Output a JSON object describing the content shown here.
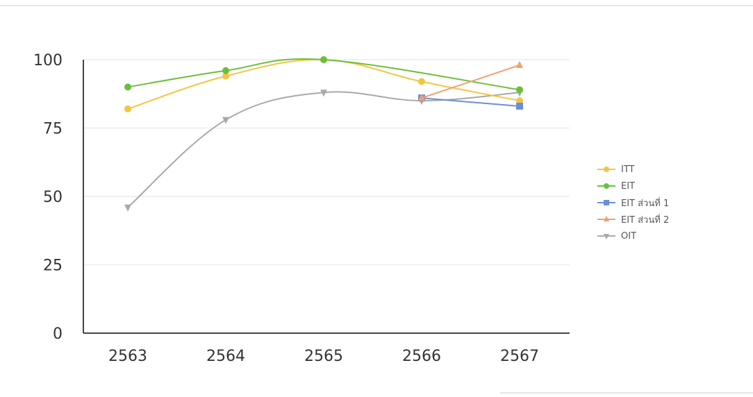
{
  "chart_data": {
    "type": "line",
    "categories": [
      "2563",
      "2564",
      "2565",
      "2566",
      "2567"
    ],
    "yticks": [
      "0",
      "25",
      "50",
      "75",
      "100"
    ],
    "ylim": [
      0,
      100
    ],
    "grid": true,
    "legend_position": "right",
    "series": [
      {
        "name": "ITT",
        "color": "#f4c542",
        "marker": "circle",
        "values": [
          82,
          94,
          100,
          92,
          85
        ]
      },
      {
        "name": "EIT",
        "color": "#6abf3a",
        "marker": "circle",
        "values": [
          90,
          96,
          100,
          null,
          89
        ]
      },
      {
        "name": "EIT ส่วนที่ 1",
        "color": "#6b8fd6",
        "marker": "square",
        "values": [
          null,
          null,
          null,
          86,
          83
        ]
      },
      {
        "name": "EIT ส่วนที่ 2",
        "color": "#f0a070",
        "marker": "triangle-up",
        "values": [
          null,
          null,
          null,
          86,
          98
        ]
      },
      {
        "name": "OIT",
        "color": "#a8a8a8",
        "marker": "triangle-down",
        "values": [
          46,
          78,
          88,
          85,
          88
        ]
      }
    ]
  }
}
